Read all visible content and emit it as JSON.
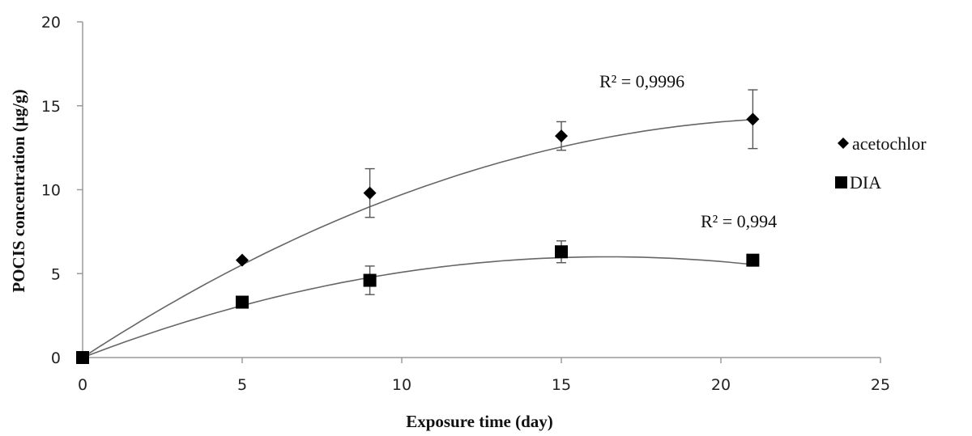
{
  "chart_data": {
    "type": "scatter",
    "title": "",
    "xlabel": "Exposure time (day)",
    "ylabel": "POCIS concentration (µg/g)",
    "xlim": [
      0,
      25
    ],
    "ylim": [
      0,
      20
    ],
    "x_ticks": [
      "0",
      "5",
      "10",
      "15",
      "20",
      "25"
    ],
    "y_ticks": [
      "0",
      "5",
      "10",
      "15",
      "20"
    ],
    "grid": false,
    "legend_position": "right",
    "series": [
      {
        "name": "acetochlor",
        "marker": "diamond",
        "color": "#000000",
        "x": [
          0,
          5,
          9,
          15,
          21
        ],
        "y": [
          0,
          5.8,
          9.8,
          13.2,
          14.2
        ],
        "error": [
          0,
          0,
          1.45,
          0.85,
          1.75
        ],
        "trendline": "polynomial",
        "trend_coeffs": [
          0,
          1.24,
          -0.0269
        ],
        "r2_label": "R² = 0,9996"
      },
      {
        "name": "DIA",
        "marker": "square",
        "color": "#000000",
        "x": [
          0,
          5,
          9,
          15,
          21
        ],
        "y": [
          0,
          3.3,
          4.6,
          6.3,
          5.8
        ],
        "error": [
          0,
          0,
          0.85,
          0.65,
          0
        ],
        "trendline": "polynomial",
        "trend_coeffs": [
          0,
          0.73,
          -0.0222
        ],
        "r2_label": "R² = 0,994"
      }
    ]
  }
}
